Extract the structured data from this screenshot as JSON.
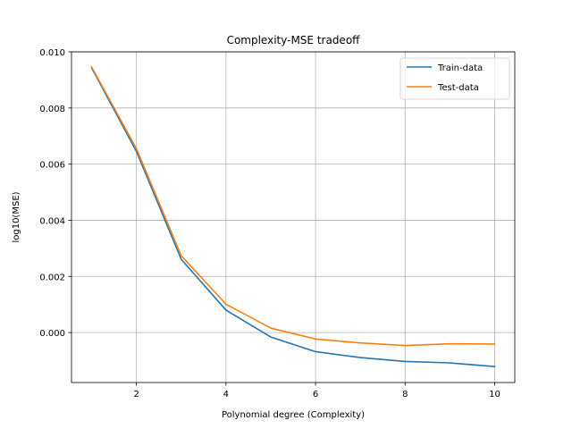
{
  "chart_data": {
    "type": "line",
    "title": "Complexity-MSE tradeoff",
    "xlabel": "Polynomial degree (Complexity)",
    "ylabel": "log10(MSE)",
    "x": [
      1,
      2,
      3,
      4,
      5,
      6,
      7,
      8,
      9,
      10
    ],
    "xlim": [
      0.55,
      10.45
    ],
    "ylim": [
      -0.00178,
      0.01
    ],
    "xticks": [
      2,
      4,
      6,
      8,
      10
    ],
    "xtick_labels": [
      "2",
      "4",
      "6",
      "8",
      "10"
    ],
    "yticks": [
      0.0,
      0.002,
      0.004,
      0.006,
      0.008,
      0.01
    ],
    "ytick_labels": [
      "0.000",
      "0.002",
      "0.004",
      "0.006",
      "0.008",
      "0.010"
    ],
    "grid": true,
    "legend_position": "top-right",
    "series": [
      {
        "name": "Train-data",
        "color": "#1f77b4",
        "values": [
          0.00943,
          0.00645,
          0.00261,
          0.0008,
          -0.00016,
          -0.00068,
          -0.00089,
          -0.00103,
          -0.00108,
          -0.00121
        ]
      },
      {
        "name": "Test-data",
        "color": "#ff7f0e",
        "values": [
          0.00946,
          0.00655,
          0.00274,
          0.00101,
          0.00016,
          -0.00023,
          -0.00037,
          -0.00046,
          -0.0004,
          -0.00041
        ]
      }
    ]
  }
}
